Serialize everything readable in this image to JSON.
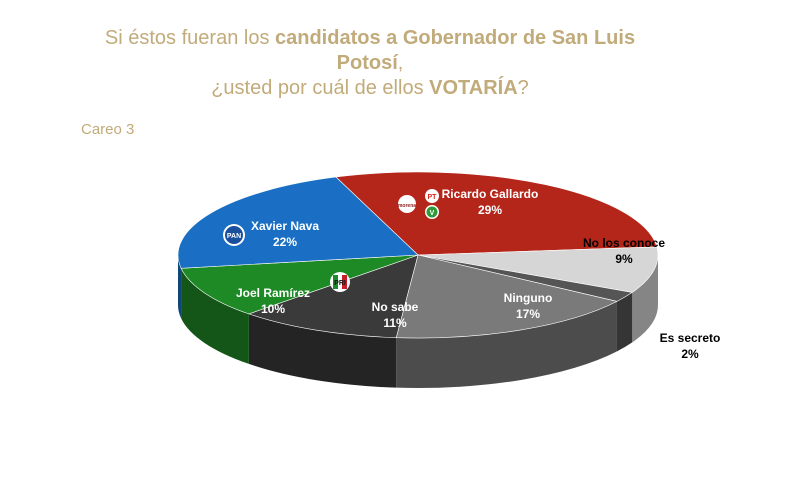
{
  "title": {
    "line1_pre": "Si éstos fueran los ",
    "line1_bold": "candidatos a Gobernador de San Luis Potosí",
    "line1_post": ",",
    "line2_pre": "¿usted por cuál de ellos ",
    "line2_bold": "VOTARÍA",
    "line2_post": "?"
  },
  "careo": "Careo 3",
  "logos": {
    "morena": "morena",
    "pt": "PT",
    "verde": "V",
    "pan": "PAN",
    "pri": "PRI"
  },
  "chart_data": {
    "type": "pie",
    "title": "Si éstos fueran los candidatos a Gobernador de San Luis Potosí, ¿usted por cuál de ellos VOTARÍA?",
    "subtitle": "Careo 3",
    "slices": [
      {
        "label": "Ricardo Gallardo",
        "value": 29,
        "value_label": "29%",
        "color": "#b5261a"
      },
      {
        "label": "No los conoce",
        "value": 9,
        "value_label": "9%",
        "color": "#d6d6d6"
      },
      {
        "label": "Es secreto",
        "value": 2,
        "value_label": "2%",
        "color": "#555555"
      },
      {
        "label": "Ninguno",
        "value": 17,
        "value_label": "17%",
        "color": "#7a7a7a"
      },
      {
        "label": "No sabe",
        "value": 11,
        "value_label": "11%",
        "color": "#3a3a3a"
      },
      {
        "label": "Joel Ramírez",
        "value": 10,
        "value_label": "10%",
        "color": "#1e8a25"
      },
      {
        "label": "Xavier Nava",
        "value": 22,
        "value_label": "22%",
        "color": "#1a6fc4"
      }
    ]
  }
}
